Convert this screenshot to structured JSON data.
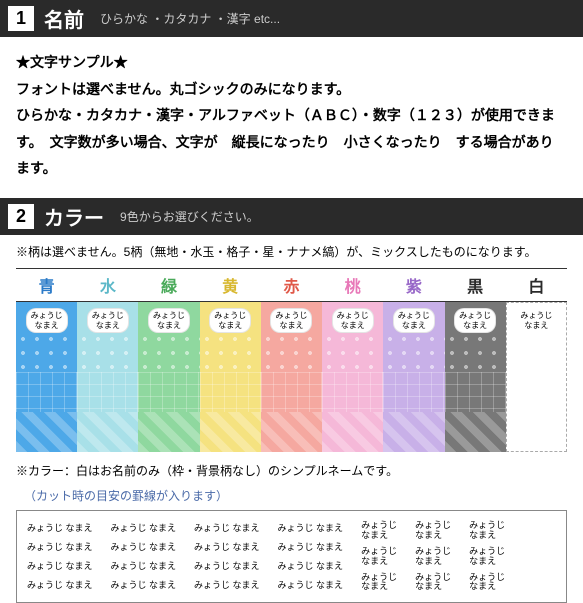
{
  "section1": {
    "num": "1",
    "title": "名前",
    "subtitle": "ひらかな ・カタカナ ・漢字 etc..."
  },
  "textBlock": {
    "line1": "★文字サンプル★",
    "line2": "フォントは選べません。丸ゴシックのみになります。",
    "line3": "ひらかな・カタカナ・漢字・アルファベット（ＡＢＣ）・数字（１２３）が使用できます。　文字数が多い場合、文字が　縦長になったり　小さくなったり　する場合があります。"
  },
  "section2": {
    "num": "2",
    "title": "カラー",
    "subtitle": "9色からお選びください。"
  },
  "patternNote": "※柄は選べません。5柄（無地・水玉・格子・星・ナナメ縞）が、ミックスしたものになります。",
  "colors": [
    {
      "label": "青",
      "bg": "#4da8e8",
      "labelColor": "#2a7ac8"
    },
    {
      "label": "水",
      "bg": "#a8e0e8",
      "labelColor": "#5cb8c8"
    },
    {
      "label": "緑",
      "bg": "#8fd89f",
      "labelColor": "#4aaa5a"
    },
    {
      "label": "黄",
      "bg": "#f5e280",
      "labelColor": "#d8b830"
    },
    {
      "label": "赤",
      "bg": "#f5a8a0",
      "labelColor": "#e05848"
    },
    {
      "label": "桃",
      "bg": "#f5b8d8",
      "labelColor": "#e878b8"
    },
    {
      "label": "紫",
      "bg": "#c8b0e8",
      "labelColor": "#9868c8"
    },
    {
      "label": "黒",
      "bg": "#787878",
      "labelColor": "#2a2a2a"
    },
    {
      "label": "白",
      "bg": "#ffffff",
      "labelColor": "#2a2a2a"
    }
  ],
  "nameTag": {
    "line1": "みょうじ",
    "line2": "なまえ"
  },
  "whiteNote": "※カラー：白はお名前のみ（枠・背景柄なし）のシンプルネームです。",
  "cutNote": "（カット時の目安の罫線が入ります）",
  "sampleText": "みょうじ なまえ",
  "sampleText2a": "みょうじ",
  "sampleText2b": "なまえ"
}
